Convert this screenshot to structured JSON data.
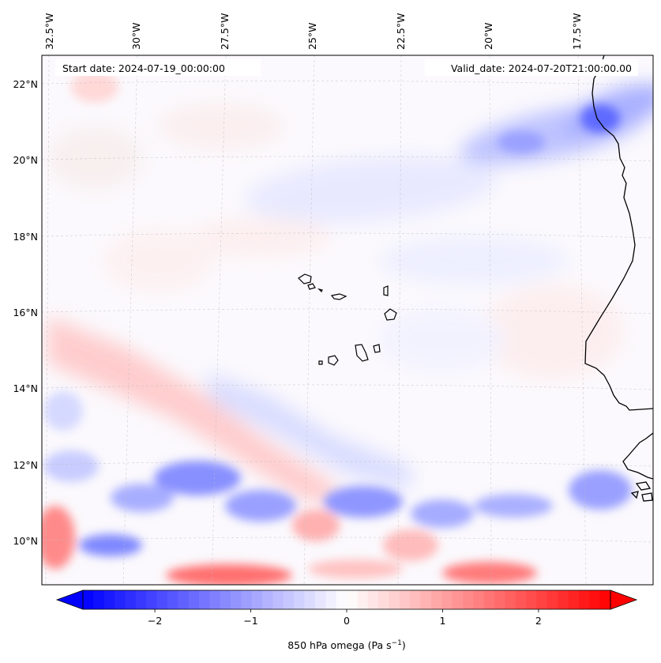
{
  "map": {
    "start_date": "Start date: 2024-07-19_00:00:00",
    "valid_date": "Valid_date: 2024-07-20T21:00:00.00",
    "lon_labels": [
      "32.5°W",
      "30°W",
      "27.5°W",
      "25°W",
      "22.5°W",
      "20°W",
      "17.5°W"
    ],
    "lat_labels": [
      "22°N",
      "20°N",
      "18°N",
      "16°N",
      "14°N",
      "12°N",
      "10°N"
    ],
    "colormap": {
      "low": "#0000ff",
      "mid": "#ffffff",
      "high": "#ff0000"
    }
  },
  "colorbar": {
    "ticks": [
      -2,
      -1,
      0,
      1,
      2
    ],
    "tick_labels": [
      "−2",
      "−1",
      "0",
      "1",
      "2"
    ],
    "range": [
      -2.75,
      2.75
    ],
    "extend": "both",
    "label": "850 hPa omega (Pa s",
    "label_sup": "−1",
    "label_end": ")"
  }
}
